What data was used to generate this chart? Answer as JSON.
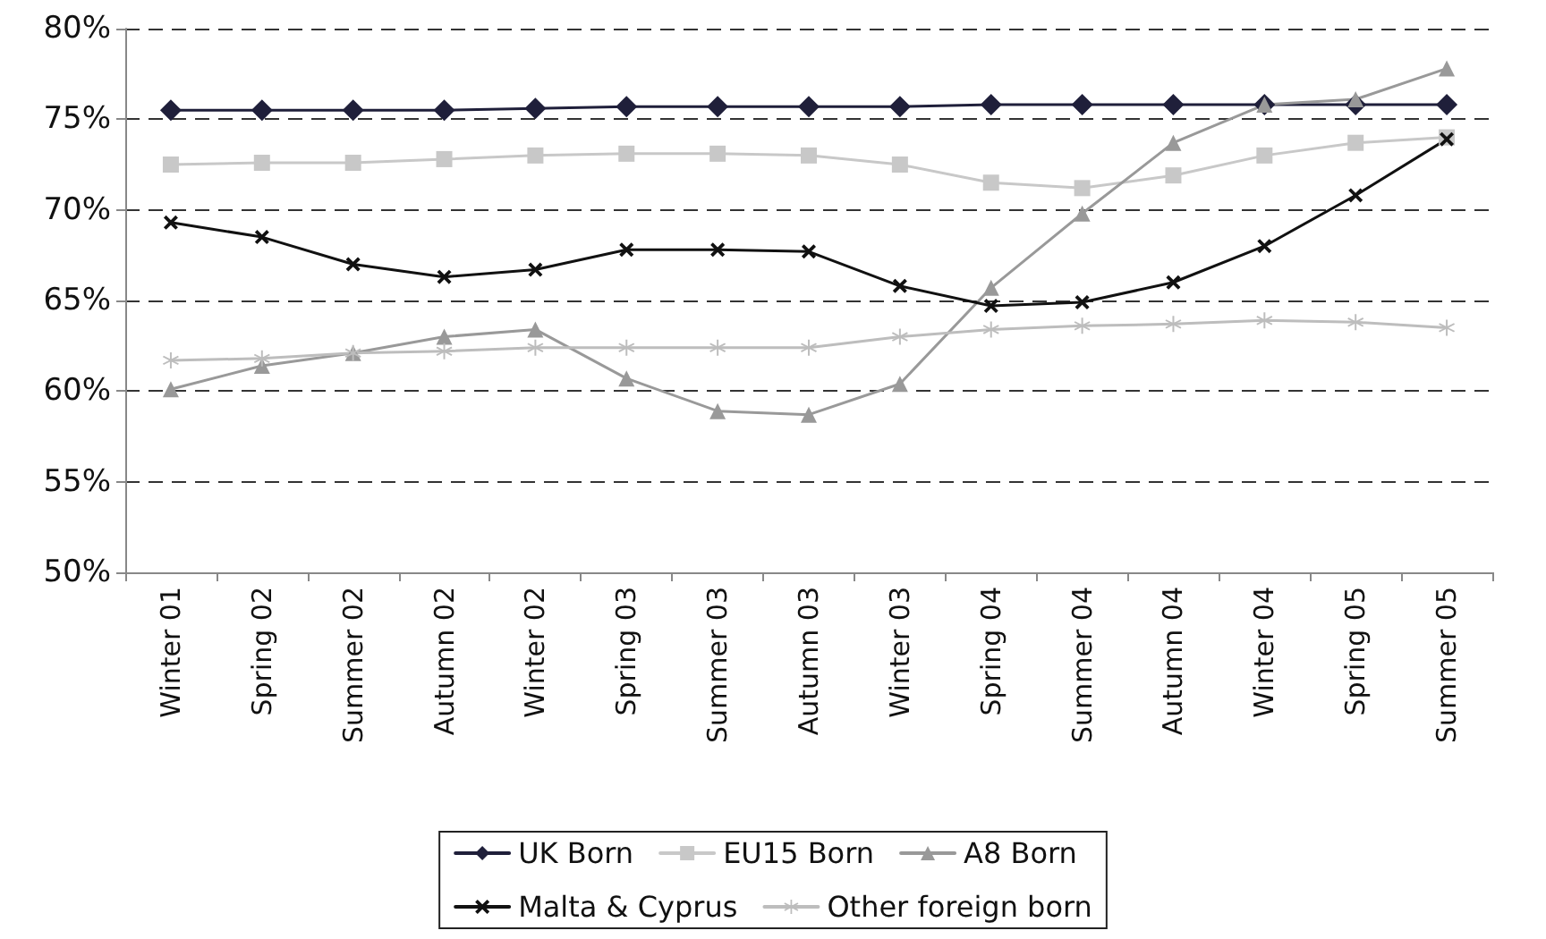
{
  "chart_data": {
    "type": "line",
    "categories": [
      "Winter 01",
      "Spring 02",
      "Summer 02",
      "Autumn 02",
      "Winter 02",
      "Spring 03",
      "Summer 03",
      "Autumn 03",
      "Winter 03",
      "Spring 04",
      "Summer 04",
      "Autumn 04",
      "Winter 04",
      "Spring 05",
      "Summer 05"
    ],
    "series": [
      {
        "name": "UK Born",
        "color": "#1f1f3a",
        "marker": "diamond",
        "values": [
          75.5,
          75.5,
          75.5,
          75.5,
          75.6,
          75.7,
          75.7,
          75.7,
          75.7,
          75.8,
          75.8,
          75.8,
          75.8,
          75.8,
          75.8
        ]
      },
      {
        "name": "EU15 Born",
        "color": "#c8c8c8",
        "marker": "square",
        "values": [
          72.5,
          72.6,
          72.6,
          72.8,
          73.0,
          73.1,
          73.1,
          73.0,
          72.5,
          71.5,
          71.2,
          71.9,
          73.0,
          73.7,
          74.0
        ]
      },
      {
        "name": "A8 Born",
        "color": "#999999",
        "marker": "triangle",
        "values": [
          60.1,
          61.4,
          62.1,
          63.0,
          63.4,
          60.7,
          58.9,
          58.7,
          60.4,
          65.7,
          69.8,
          73.7,
          75.8,
          76.1,
          77.8
        ]
      },
      {
        "name": "Malta & Cyprus",
        "color": "#111111",
        "marker": "cross",
        "values": [
          69.3,
          68.5,
          67.0,
          66.3,
          66.7,
          67.8,
          67.8,
          67.7,
          65.8,
          64.7,
          64.9,
          66.0,
          68.0,
          70.8,
          73.9
        ]
      },
      {
        "name": "Other foreign born",
        "color": "#bdbdbd",
        "marker": "star",
        "values": [
          61.7,
          61.8,
          62.1,
          62.2,
          62.4,
          62.4,
          62.4,
          62.4,
          63.0,
          63.4,
          63.6,
          63.7,
          63.9,
          63.8,
          63.5
        ]
      }
    ],
    "ylim": [
      50,
      80
    ],
    "yticks": [
      {
        "value": 50,
        "label": "50%"
      },
      {
        "value": 55,
        "label": "55%"
      },
      {
        "value": 60,
        "label": "60%"
      },
      {
        "value": 65,
        "label": "65%"
      },
      {
        "value": 70,
        "label": "70%"
      },
      {
        "value": 75,
        "label": "75%"
      },
      {
        "value": 80,
        "label": "80%"
      }
    ],
    "grid": "y",
    "legend": "bottom",
    "line_style": "solid"
  }
}
